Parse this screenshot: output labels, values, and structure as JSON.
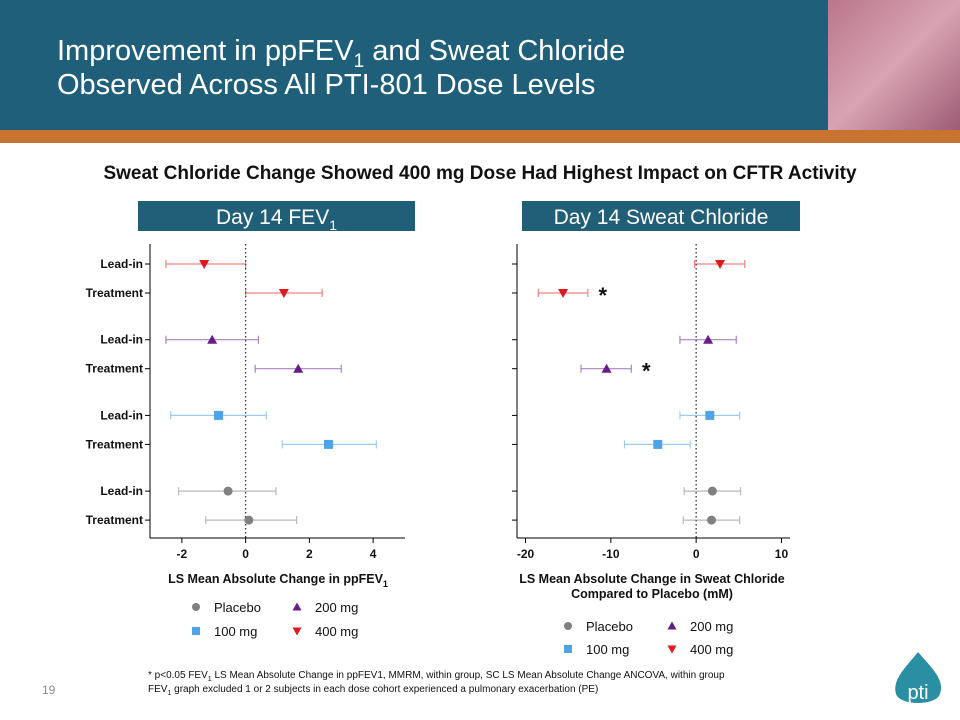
{
  "slide": {
    "title_line1": [
      "Improvement in ppFEV",
      "1",
      " and Sweat Chloride"
    ],
    "title_line2": "Observed Across All PTI-801 Dose Levels",
    "subtitle": "Sweat Chloride Change Showed 400 mg Dose Had Highest Impact on CFTR Activity",
    "footnote_line1": [
      "* p<0.05 FEV",
      "1",
      " LS Mean Absolute Change in ppFEV1, MMRM, within group, SC LS Mean Absolute Change ANCOVA, within group"
    ],
    "footnote_line2": [
      "FEV",
      "1",
      " graph excluded 1 or 2 subjects in each dose cohort experienced a pulmonary exacerbation (PE)"
    ],
    "page_number": "19",
    "logo": "pti"
  },
  "chart_data": [
    {
      "type": "forest",
      "panel_title": [
        "Day 14 FEV",
        "1"
      ],
      "x_label": [
        "LS Mean Absolute Change in ppFEV",
        "1"
      ],
      "categories": [
        "Lead-in",
        "Treatment",
        "Lead-in",
        "Treatment",
        "Lead-in",
        "Treatment",
        "Lead-in",
        "Treatment"
      ],
      "xlim": [
        -3,
        5
      ],
      "xticks": [
        -2,
        0,
        2,
        4
      ],
      "series": [
        {
          "name": "Placebo",
          "color": "#808080",
          "marker": "circle",
          "values": [
            null,
            null,
            null,
            null,
            null,
            null,
            -0.55,
            0.1
          ],
          "lower": [
            null,
            null,
            null,
            null,
            null,
            null,
            -2.1,
            -1.25
          ],
          "upper": [
            null,
            null,
            null,
            null,
            null,
            null,
            0.95,
            1.6
          ]
        },
        {
          "name": "100 mg",
          "color": "#4da3e6",
          "marker": "square",
          "values": [
            null,
            null,
            null,
            null,
            -0.85,
            2.6,
            null,
            null
          ],
          "lower": [
            null,
            null,
            null,
            null,
            -2.35,
            1.15,
            null,
            null
          ],
          "upper": [
            null,
            null,
            null,
            null,
            0.65,
            4.1,
            null,
            null
          ]
        },
        {
          "name": "200 mg",
          "color": "#6a1b8a",
          "marker": "triangle-up",
          "values": [
            null,
            null,
            -1.05,
            1.65,
            null,
            null,
            null,
            null
          ],
          "lower": [
            null,
            null,
            -2.5,
            0.3,
            null,
            null,
            null,
            null
          ],
          "upper": [
            null,
            null,
            0.4,
            3.0,
            null,
            null,
            null,
            null
          ]
        },
        {
          "name": "400 mg",
          "color": "#e0191f",
          "marker": "triangle-down",
          "values": [
            -1.3,
            1.2,
            null,
            null,
            null,
            null,
            null,
            null
          ],
          "lower": [
            -2.5,
            0.0,
            null,
            null,
            null,
            null,
            null,
            null
          ],
          "upper": [
            0.0,
            2.4,
            null,
            null,
            null,
            null,
            null,
            null
          ]
        }
      ]
    },
    {
      "type": "forest",
      "panel_title": [
        "Day 14 Sweat Chloride"
      ],
      "x_label": [
        "LS Mean Absolute Change in Sweat Chloride",
        "Compared to Placebo (mM)"
      ],
      "categories": [
        null,
        null,
        null,
        null,
        null,
        null,
        null,
        null
      ],
      "xlim": [
        -21,
        11
      ],
      "xticks": [
        -20,
        -10,
        0,
        10
      ],
      "series": [
        {
          "name": "Placebo",
          "color": "#808080",
          "marker": "circle",
          "values": [
            null,
            null,
            null,
            null,
            null,
            null,
            1.9,
            1.8
          ],
          "lower": [
            null,
            null,
            null,
            null,
            null,
            null,
            -1.4,
            -1.5
          ],
          "upper": [
            null,
            null,
            null,
            null,
            null,
            null,
            5.2,
            5.1
          ]
        },
        {
          "name": "100 mg",
          "color": "#4da3e6",
          "marker": "square",
          "values": [
            null,
            null,
            null,
            null,
            1.6,
            -4.5,
            null,
            null
          ],
          "lower": [
            null,
            null,
            null,
            null,
            -1.9,
            -8.4,
            null,
            null
          ],
          "upper": [
            null,
            null,
            null,
            null,
            5.1,
            -0.7,
            null,
            null
          ]
        },
        {
          "name": "200 mg",
          "color": "#6a1b8a",
          "marker": "triangle-up",
          "values": [
            null,
            null,
            1.4,
            -10.5,
            null,
            null,
            null,
            null
          ],
          "lower": [
            null,
            null,
            -1.9,
            -13.5,
            null,
            null,
            null,
            null
          ],
          "upper": [
            null,
            null,
            4.7,
            -7.6,
            null,
            null,
            null,
            null
          ],
          "point_labels": [
            null,
            null,
            null,
            "*",
            null,
            null,
            null,
            null
          ]
        },
        {
          "name": "400 mg",
          "color": "#e0191f",
          "marker": "triangle-down",
          "values": [
            2.8,
            -15.6,
            null,
            null,
            null,
            null,
            null,
            null
          ],
          "lower": [
            -0.2,
            -18.5,
            null,
            null,
            null,
            null,
            null,
            null
          ],
          "upper": [
            5.7,
            -12.7,
            null,
            null,
            null,
            null,
            null,
            null
          ],
          "point_labels": [
            null,
            "*",
            null,
            null,
            null,
            null,
            null,
            null
          ]
        }
      ]
    }
  ]
}
